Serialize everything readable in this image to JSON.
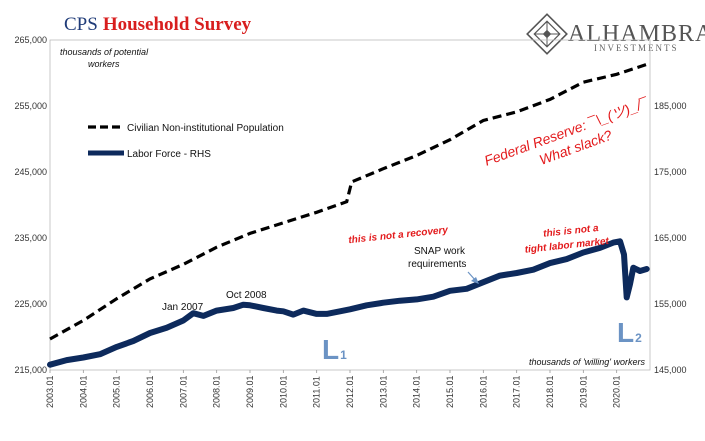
{
  "title": {
    "part1": "CPS",
    "part2": "Household Survey"
  },
  "logo": {
    "name": "ALHAMBRA",
    "sub": "INVESTMENTS"
  },
  "chart_data": {
    "type": "line",
    "left_axis": {
      "unit_label_line1": "thousands of potential",
      "unit_label_line2": "workers",
      "ylim": [
        215000,
        265000
      ],
      "ticks": [
        "215,000",
        "225,000",
        "235,000",
        "245,000",
        "255,000",
        "265,000"
      ]
    },
    "right_axis": {
      "unit_label": "thousands of 'willing' workers",
      "ylim": [
        145000,
        195000
      ],
      "ticks": [
        "145,000",
        "155,000",
        "165,000",
        "175,000",
        "185,000"
      ]
    },
    "x_ticks": [
      "2003.01",
      "2004.01",
      "2005.01",
      "2006.01",
      "2007.01",
      "2008.01",
      "2009.01",
      "2010.01",
      "2011.01",
      "2012.01",
      "2013.01",
      "2014.01",
      "2015.01",
      "2016.01",
      "2017.01",
      "2018.01",
      "2019.01",
      "2020.01"
    ],
    "xlim": [
      2003.0,
      2021.0
    ],
    "series": [
      {
        "name": "Civilian Non-institutional Population",
        "axis": "left",
        "color": "#000000",
        "style": "dashed",
        "points": [
          [
            2003.0,
            219700
          ],
          [
            2004.0,
            222500
          ],
          [
            2005.0,
            225800
          ],
          [
            2006.0,
            228800
          ],
          [
            2007.0,
            231000
          ],
          [
            2008.0,
            233600
          ],
          [
            2009.0,
            235700
          ],
          [
            2010.0,
            237300
          ],
          [
            2011.0,
            238900
          ],
          [
            2011.9,
            240500
          ],
          [
            2012.05,
            243500
          ],
          [
            2013.0,
            245500
          ],
          [
            2014.0,
            247500
          ],
          [
            2015.0,
            249900
          ],
          [
            2016.0,
            252800
          ],
          [
            2017.0,
            254100
          ],
          [
            2018.0,
            256000
          ],
          [
            2019.0,
            258600
          ],
          [
            2020.0,
            259800
          ],
          [
            2020.9,
            261300
          ]
        ]
      },
      {
        "name": "Labor Force - RHS",
        "axis": "right",
        "color": "#0d2a5c",
        "style": "solid",
        "points": [
          [
            2003.0,
            145800
          ],
          [
            2003.5,
            146500
          ],
          [
            2004.0,
            146900
          ],
          [
            2004.5,
            147400
          ],
          [
            2005.0,
            148500
          ],
          [
            2005.5,
            149400
          ],
          [
            2006.0,
            150600
          ],
          [
            2006.5,
            151400
          ],
          [
            2007.0,
            152500
          ],
          [
            2007.3,
            153600
          ],
          [
            2007.6,
            153200
          ],
          [
            2008.0,
            154000
          ],
          [
            2008.5,
            154400
          ],
          [
            2008.8,
            154900
          ],
          [
            2009.0,
            154800
          ],
          [
            2009.4,
            154400
          ],
          [
            2009.8,
            154000
          ],
          [
            2010.0,
            153900
          ],
          [
            2010.3,
            153400
          ],
          [
            2010.6,
            154000
          ],
          [
            2011.0,
            153500
          ],
          [
            2011.3,
            153500
          ],
          [
            2011.7,
            153900
          ],
          [
            2012.0,
            154200
          ],
          [
            2012.5,
            154800
          ],
          [
            2013.0,
            155200
          ],
          [
            2013.5,
            155500
          ],
          [
            2014.0,
            155700
          ],
          [
            2014.5,
            156100
          ],
          [
            2015.0,
            157000
          ],
          [
            2015.5,
            157300
          ],
          [
            2016.0,
            158300
          ],
          [
            2016.5,
            159300
          ],
          [
            2017.0,
            159700
          ],
          [
            2017.5,
            160200
          ],
          [
            2018.0,
            161200
          ],
          [
            2018.5,
            161800
          ],
          [
            2019.0,
            162800
          ],
          [
            2019.5,
            163500
          ],
          [
            2019.9,
            164300
          ],
          [
            2020.1,
            164500
          ],
          [
            2020.22,
            162500
          ],
          [
            2020.3,
            156000
          ],
          [
            2020.4,
            158000
          ],
          [
            2020.5,
            160500
          ],
          [
            2020.7,
            160000
          ],
          [
            2020.9,
            160300
          ]
        ]
      }
    ],
    "legend": {
      "placement": "top-left"
    },
    "annotations": {
      "fed": "Federal Reserve: ¯\\_(ツ)_/¯",
      "fed2": "What slack?",
      "recovery": "this is not a recovery",
      "tight1": "this is not a",
      "tight2": "tight labor market",
      "snap1": "SNAP work",
      "snap2": "requirements",
      "jan2007": "Jan  2007",
      "oct2008": "Oct 2008",
      "l1_letter": "L",
      "l1_sub": "1",
      "l2_letter": "L",
      "l2_sub": "2"
    }
  }
}
